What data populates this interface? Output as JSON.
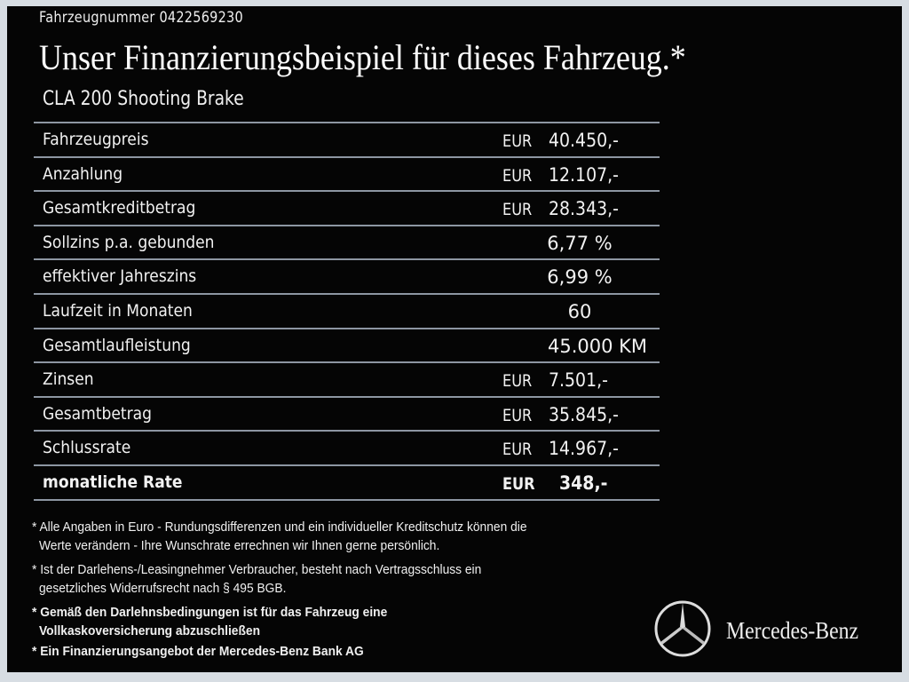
{
  "header": {
    "vehicle_number": "Fahrzeugnummer  0422569230",
    "title": "Unser Finanzierungsbeispiel für dieses Fahrzeug.*",
    "model": "CLA 200 Shooting Brake"
  },
  "rows": [
    {
      "label": "Fahrzeugpreis",
      "currency": "EUR",
      "value": "40.450,-"
    },
    {
      "label": "Anzahlung",
      "currency": "EUR",
      "value": "12.107,-"
    },
    {
      "label": "Gesamtkreditbetrag",
      "currency": "EUR",
      "value": "28.343,-"
    },
    {
      "label": "Sollzins p.a. gebunden",
      "currency": "",
      "value": "6,77 %"
    },
    {
      "label": "effektiver Jahreszins",
      "currency": "",
      "value": "6,99 %"
    },
    {
      "label": "Laufzeit in Monaten",
      "currency": "",
      "value": "60"
    },
    {
      "label": "Gesamtlaufleistung",
      "currency": "",
      "value": "45.000 KM"
    },
    {
      "label": "Zinsen",
      "currency": "EUR",
      "value": "7.501,-"
    },
    {
      "label": "Gesamtbetrag",
      "currency": "EUR",
      "value": "35.845,-"
    },
    {
      "label": "Schlussrate",
      "currency": "EUR",
      "value": "14.967,-"
    },
    {
      "label": "monatliche Rate",
      "currency": "EUR",
      "value": "348,-"
    }
  ],
  "notes": [
    "* Alle Angaben in Euro - Rundungsdifferenzen und ein individueller Kreditschutz können die",
    "  Werte verändern - Ihre Wunschrate errechnen wir Ihnen gerne persönlich.",
    "* Ist der Darlehens-/Leasingnehmer Verbraucher, besteht nach Vertragsschluss ein",
    "  gesetzliches  Widerrufsrecht nach § 495 BGB.",
    "* Gemäß den Darlehnsbedingungen ist für das Fahrzeug eine",
    "  Vollkaskoversicherung abzuschließen",
    "* Ein Finanzierungsangebot der Mercedes-Benz Bank AG"
  ],
  "brand": {
    "name": "Mercedes-Benz",
    "icon": "mercedes-star-icon"
  },
  "colors": {
    "background": "#050505",
    "rule": "#8d96a2",
    "frame": "#d7dde3"
  }
}
